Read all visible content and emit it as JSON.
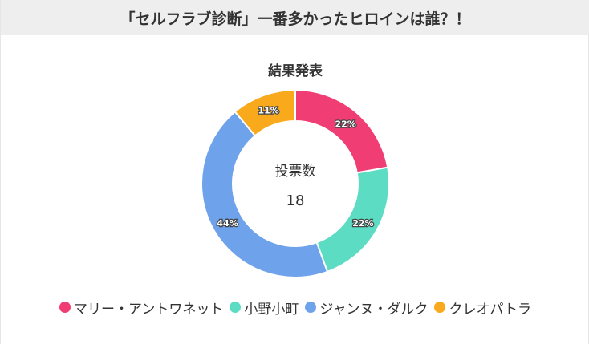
{
  "header": {
    "title": "「セルフラブ診断」一番多かったヒロインは誰？！"
  },
  "chart_data": {
    "type": "pie",
    "title": "結果発表",
    "center_label": "投票数",
    "center_value": "18",
    "slices": [
      {
        "name": "マリー・アントワネット",
        "value": 4,
        "percent_label": "22%",
        "color": "#f03e74"
      },
      {
        "name": "小野小町",
        "value": 4,
        "percent_label": "22%",
        "color": "#5cdcc3"
      },
      {
        "name": "ジャンヌ・ダルク",
        "value": 8,
        "percent_label": "44%",
        "color": "#6ea2eb"
      },
      {
        "name": "クレオパトラ",
        "value": 2,
        "percent_label": "11%",
        "color": "#f9aa1c"
      }
    ],
    "legend_position": "bottom"
  }
}
